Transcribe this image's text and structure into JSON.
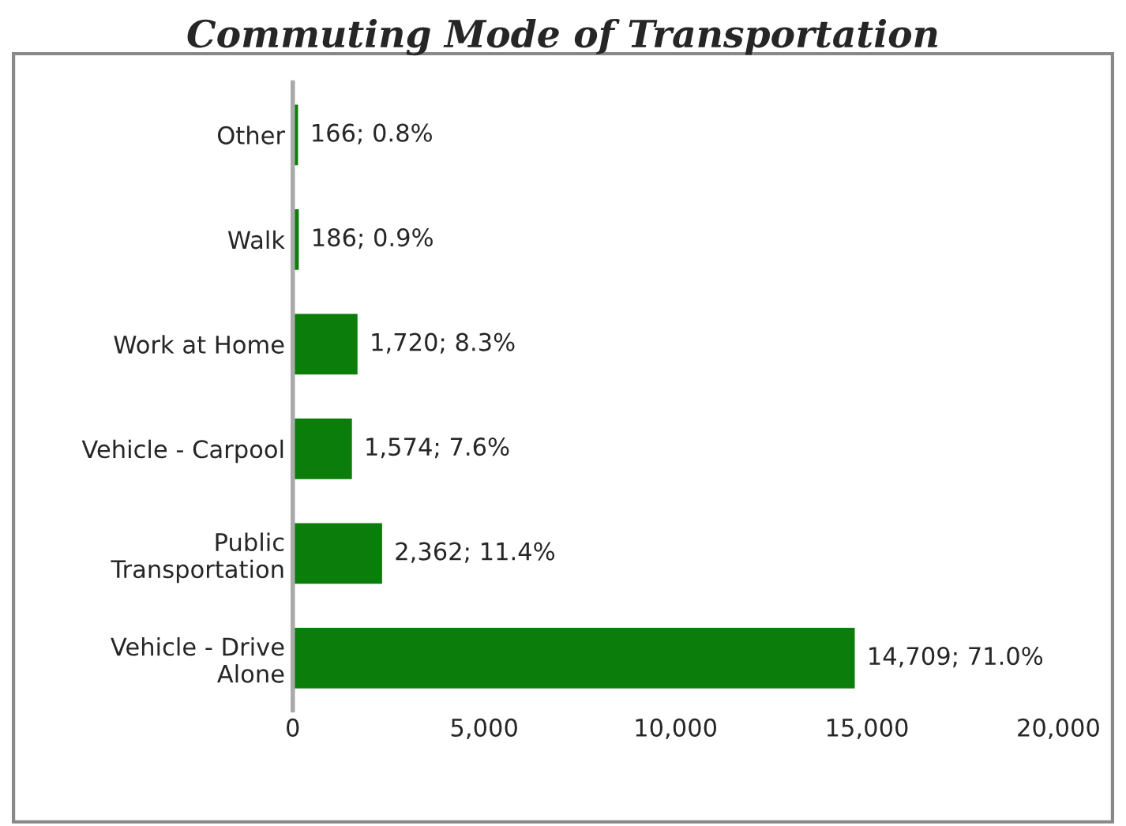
{
  "chart_data": {
    "type": "bar",
    "orientation": "horizontal",
    "title": "Commuting Mode of Transportation",
    "categories": [
      "Other",
      "Walk",
      "Work at Home",
      "Vehicle - Carpool",
      "Public\nTransportation",
      "Vehicle - Drive\nAlone"
    ],
    "values": [
      166,
      186,
      1720,
      1574,
      2362,
      14709
    ],
    "value_labels": [
      "166; 0.8%",
      "186; 0.9%",
      "1,720; 8.3%",
      "1,574; 7.6%",
      "2,362; 11.4%",
      "14,709; 71.0%"
    ],
    "color": "#0a7d0a",
    "xlim": [
      0,
      20000
    ],
    "xticks": [
      0,
      {
        "value": 5000,
        "label": "5,000"
      },
      {
        "value": 10000,
        "label": "10,000"
      },
      {
        "value": 15000,
        "label": "15,000"
      },
      {
        "value": 20000,
        "label": "20,000"
      }
    ],
    "grid": false,
    "legend": false
  }
}
